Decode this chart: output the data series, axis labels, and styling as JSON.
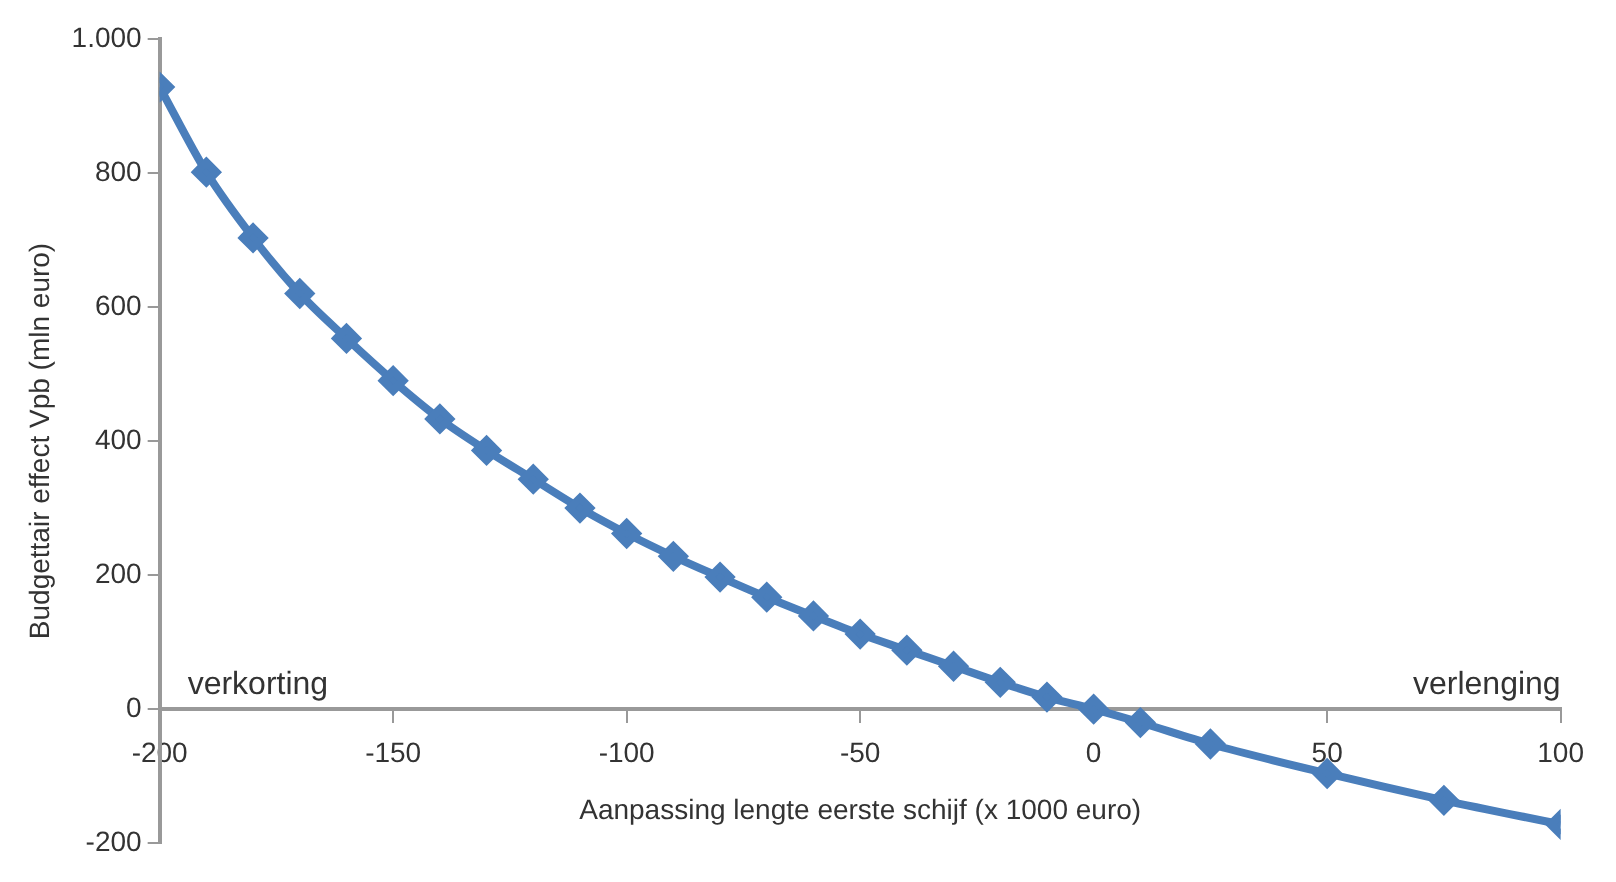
{
  "chart_data": {
    "type": "line",
    "xlabel": "Aanpassing lengte eerste schijf (x 1000 euro)",
    "ylabel": "Budgettair effect Vpb (mln euro)",
    "x": [
      -200,
      -190,
      -180,
      -170,
      -160,
      -150,
      -140,
      -130,
      -120,
      -110,
      -100,
      -90,
      -80,
      -70,
      -60,
      -50,
      -40,
      -30,
      -20,
      -10,
      0,
      10,
      25,
      50,
      75,
      100
    ],
    "series": [
      {
        "color": "#4a7ebb",
        "values": [
          928,
          801,
          703,
          620,
          553,
          490,
          433,
          386,
          343,
          300,
          262,
          228,
          197,
          167,
          139,
          112,
          88,
          64,
          40,
          18,
          0,
          -20,
          -52,
          -96,
          -136,
          -172
        ]
      }
    ],
    "xlim": [
      -200,
      100
    ],
    "xticks": [
      -200,
      -150,
      -100,
      -50,
      0,
      50,
      100
    ],
    "ylim": [
      -200,
      1000
    ],
    "yticks": [
      -200,
      0,
      200,
      400,
      600,
      800,
      {
        "value": 1000,
        "label": "1.000"
      }
    ],
    "grid": false,
    "legend": false,
    "marker": "diamond",
    "line_style": "solid",
    "annotations": [
      "verkorting",
      "verlenging"
    ]
  }
}
